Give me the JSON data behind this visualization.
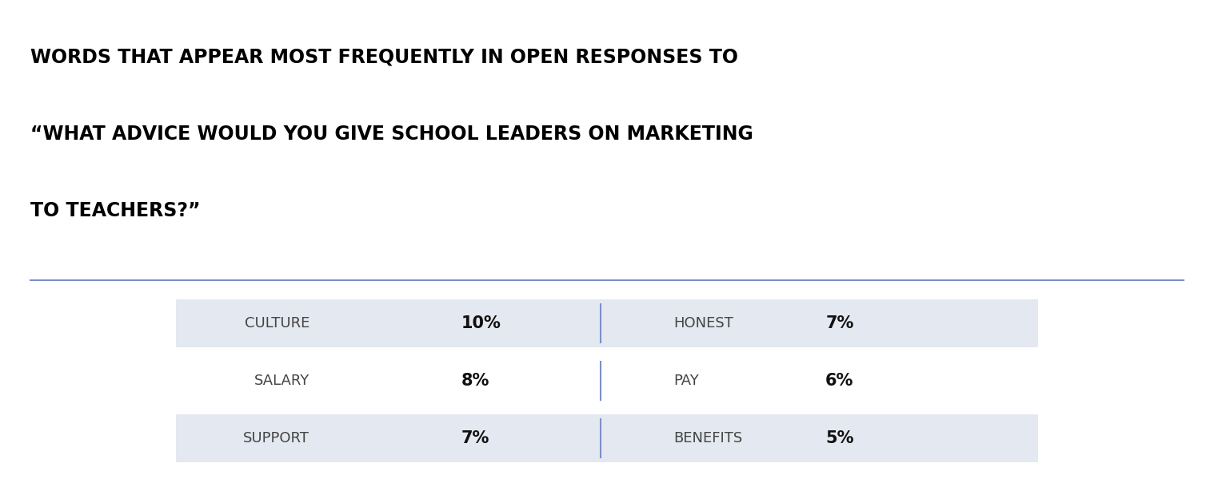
{
  "title_line1": "WORDS THAT APPEAR MOST FREQUENTLY IN OPEN RESPONSES TO",
  "title_line2": "“WHAT ADVICE WOULD YOU GIVE SCHOOL LEADERS ON MARKETING",
  "title_line3": "TO TEACHERS?”",
  "background_color": "#ffffff",
  "row_bg_color": "#e4e8f0",
  "divider_color": "#7b8fc8",
  "title_color": "#000000",
  "title_fontsize": 17,
  "separator_color": "#7b8fc8",
  "rows": [
    {
      "left_word": "CULTURE",
      "left_pct": "10%",
      "right_word": "HONEST",
      "right_pct": "7%",
      "shaded": true
    },
    {
      "left_word": "SALARY",
      "left_pct": "8%",
      "right_word": "PAY",
      "right_pct": "6%",
      "shaded": false
    },
    {
      "left_word": "SUPPORT",
      "left_pct": "7%",
      "right_word": "BENEFITS",
      "right_pct": "5%",
      "shaded": true
    }
  ],
  "word_fontsize": 13,
  "pct_fontsize": 15,
  "word_color": "#444444",
  "pct_color": "#111111"
}
